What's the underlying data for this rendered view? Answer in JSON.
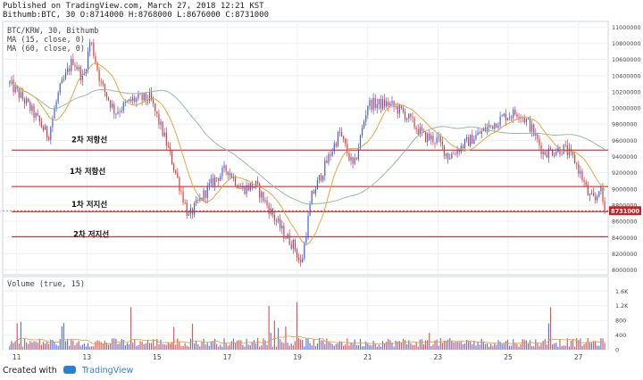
{
  "header": {
    "published": "Published on TradingView.com, March 27, 2018 12:21 KST",
    "ohlc": "Bithumb:BTC, 30 O:8714000 H:8768000 L:8676000 C:8731000"
  },
  "legend": {
    "symbol": "BTC/KRW, 30, Bithumb",
    "ma15": "MA (15, close, 0)",
    "ma60": "MA (60, close, 0)"
  },
  "volume_legend": "Volume (true, 15)",
  "footer": {
    "created_with": "Created with",
    "brand": "TradingView"
  },
  "colors": {
    "up": "#3d5bd8",
    "down": "#d63a3a",
    "ma15": "#e0a030",
    "ma60": "#8fb59a",
    "level": "#cc1111",
    "price_tag": "#d11f1f"
  },
  "chart_data": [
    {
      "type": "candlestick",
      "title": "BTC/KRW, 30, Bithumb",
      "x_ticks": [
        "11",
        "13",
        "15",
        "17",
        "19",
        "21",
        "23",
        "25",
        "27"
      ],
      "y_ticks": [
        "8000000",
        "8200000",
        "8400000",
        "8600000",
        "8800000",
        "9000000",
        "9200000",
        "9400000",
        "9600000",
        "9800000",
        "10000000",
        "10200000",
        "10400000",
        "10600000",
        "10800000",
        "11000000"
      ],
      "ylim": [
        7940000,
        11070000
      ],
      "series": [
        {
          "name": "MA (15, close, 0)"
        },
        {
          "name": "MA (60, close, 0)"
        }
      ],
      "close_path": [
        {
          "day": 10.8,
          "price": 10300000
        },
        {
          "day": 11.3,
          "price": 10050000
        },
        {
          "day": 11.6,
          "price": 9850000
        },
        {
          "day": 11.9,
          "price": 9650000
        },
        {
          "day": 12.2,
          "price": 10200000
        },
        {
          "day": 12.6,
          "price": 10600000
        },
        {
          "day": 12.9,
          "price": 10350000
        },
        {
          "day": 13.1,
          "price": 10850000
        },
        {
          "day": 13.4,
          "price": 10300000
        },
        {
          "day": 13.8,
          "price": 9950000
        },
        {
          "day": 14.3,
          "price": 10100000
        },
        {
          "day": 14.8,
          "price": 10120000
        },
        {
          "day": 15.2,
          "price": 9650000
        },
        {
          "day": 15.6,
          "price": 9100000
        },
        {
          "day": 15.9,
          "price": 8650000
        },
        {
          "day": 16.2,
          "price": 8850000
        },
        {
          "day": 16.6,
          "price": 9100000
        },
        {
          "day": 17.0,
          "price": 9250000
        },
        {
          "day": 17.4,
          "price": 9000000
        },
        {
          "day": 17.8,
          "price": 9050000
        },
        {
          "day": 18.2,
          "price": 8750000
        },
        {
          "day": 18.6,
          "price": 8450000
        },
        {
          "day": 18.9,
          "price": 8300000
        },
        {
          "day": 19.1,
          "price": 8050000
        },
        {
          "day": 19.4,
          "price": 8900000
        },
        {
          "day": 19.8,
          "price": 9300000
        },
        {
          "day": 20.2,
          "price": 9700000
        },
        {
          "day": 20.6,
          "price": 9250000
        },
        {
          "day": 21.0,
          "price": 10050000
        },
        {
          "day": 21.6,
          "price": 10050000
        },
        {
          "day": 22.0,
          "price": 9950000
        },
        {
          "day": 22.6,
          "price": 9650000
        },
        {
          "day": 23.0,
          "price": 9600000
        },
        {
          "day": 23.3,
          "price": 9400000
        },
        {
          "day": 23.9,
          "price": 9600000
        },
        {
          "day": 24.4,
          "price": 9750000
        },
        {
          "day": 24.9,
          "price": 9900000
        },
        {
          "day": 25.3,
          "price": 9950000
        },
        {
          "day": 25.6,
          "price": 9800000
        },
        {
          "day": 26.0,
          "price": 9450000
        },
        {
          "day": 26.6,
          "price": 9500000
        },
        {
          "day": 26.9,
          "price": 9350000
        },
        {
          "day": 27.1,
          "price": 9150000
        },
        {
          "day": 27.3,
          "price": 8900000
        },
        {
          "day": 27.5,
          "price": 8850000
        },
        {
          "day": 27.6,
          "price": 9050000
        },
        {
          "day": 27.75,
          "price": 8731000
        }
      ],
      "levels": [
        {
          "label": "2차 저항선",
          "price": 9480000
        },
        {
          "label": "1차 저항선",
          "price": 9030000
        },
        {
          "label": "1차 저지선",
          "price": 8720000
        },
        {
          "label": "2차 저지선",
          "price": 8410000
        }
      ],
      "last_price_label": "8731000",
      "last_price": 8731000
    },
    {
      "type": "bar",
      "title": "Volume (true, 15)",
      "y_ticks": [
        "0",
        "400",
        "800",
        "1.2K",
        "1.6K"
      ],
      "ylim": [
        0,
        1850
      ],
      "bar_count": 320,
      "typical_volume": 220
    }
  ]
}
